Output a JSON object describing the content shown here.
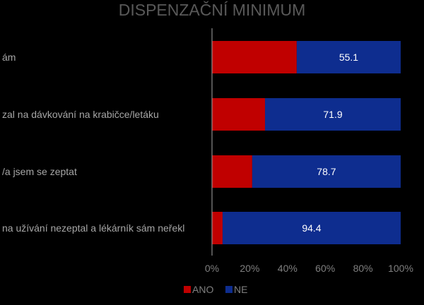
{
  "chart_data": {
    "type": "bar",
    "orientation": "horizontal",
    "stacked": "percent",
    "title": "DISPENZAČNÍ MINIMUM",
    "categories": [
      "ám",
      "zal na dávkování na krabičce/letáku",
      "/a jsem se zeptat",
      "na užívání nezeptal a lékárník sám neřekl"
    ],
    "series": [
      {
        "name": "ANO",
        "color": "#c00000",
        "values": [
          44.9,
          28.1,
          21.3,
          5.6
        ]
      },
      {
        "name": "NE",
        "color": "#0e2d8f",
        "values": [
          55.1,
          71.9,
          78.7,
          94.4
        ]
      }
    ],
    "data_labels": [
      "55.1",
      "71.9",
      "78.7",
      "94.4"
    ],
    "x_ticks": [
      "0%",
      "20%",
      "40%",
      "60%",
      "80%",
      "100%"
    ],
    "xlim": [
      0,
      100
    ],
    "grid": false,
    "legend_position": "bottom",
    "legend": [
      "ANO",
      "NE"
    ]
  }
}
